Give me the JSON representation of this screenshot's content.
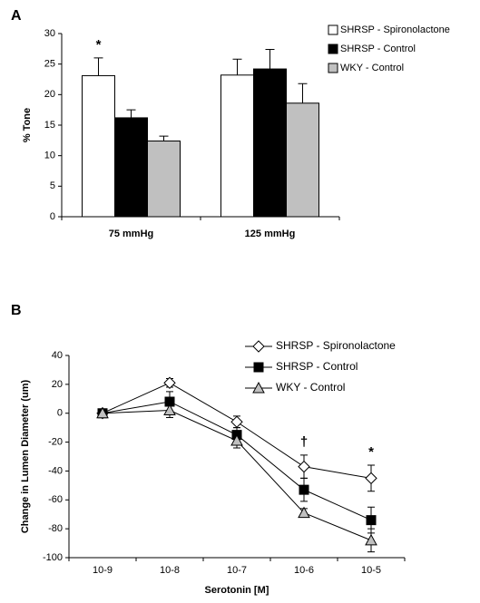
{
  "chart_data": [
    {
      "type": "bar",
      "panel_label": "A",
      "y_label": "% Tone",
      "categories": [
        "75 mmHg",
        "125 mmHg"
      ],
      "series": [
        {
          "name": "SHRSP - Spironolactone",
          "color": "#ffffff",
          "values": [
            23.1,
            23.2
          ],
          "errors": [
            2.9,
            2.6
          ]
        },
        {
          "name": "SHRSP - Control",
          "color": "#000000",
          "values": [
            16.2,
            24.2
          ],
          "errors": [
            1.3,
            3.2
          ]
        },
        {
          "name": "WKY - Control",
          "color": "#c0c0c0",
          "values": [
            12.4,
            18.6
          ],
          "errors": [
            0.8,
            3.2
          ]
        }
      ],
      "ylim": [
        0,
        30
      ],
      "yticks": [
        0,
        5,
        10,
        15,
        20,
        25,
        30
      ],
      "legend": "top-right",
      "annotations": [
        {
          "text": "*",
          "x": "75 mmHg",
          "series": 0
        }
      ]
    },
    {
      "type": "line",
      "panel_label": "B",
      "y_label": "Change in Lumen Diameter (um)",
      "x_label": "Serotonin [M]",
      "categories": [
        "10-9",
        "10-8",
        "10-7",
        "10-6",
        "10-5"
      ],
      "series": [
        {
          "name": "SHRSP - Spironolactone",
          "color": "#ffffff",
          "marker": "diamond",
          "values": [
            0,
            21,
            -6,
            -37,
            -45
          ],
          "errors": [
            0,
            3,
            4,
            8,
            9
          ]
        },
        {
          "name": "SHRSP - Control",
          "color": "#000000",
          "marker": "square",
          "values": [
            0,
            8,
            -15,
            -53,
            -74
          ],
          "errors": [
            0,
            7,
            5,
            8,
            9
          ]
        },
        {
          "name": "WKY - Control",
          "color": "#c0c0c0",
          "marker": "triangle",
          "values": [
            0,
            2,
            -19,
            -69,
            -88
          ],
          "errors": [
            0,
            5,
            5,
            3,
            8
          ]
        }
      ],
      "ylim": [
        -100,
        40
      ],
      "yticks": [
        -100,
        -80,
        -60,
        -40,
        -20,
        0,
        20,
        40
      ],
      "legend": "top-right",
      "annotations": [
        {
          "text": "†",
          "x": "10-6"
        },
        {
          "text": "*",
          "x": "10-5"
        }
      ]
    }
  ]
}
